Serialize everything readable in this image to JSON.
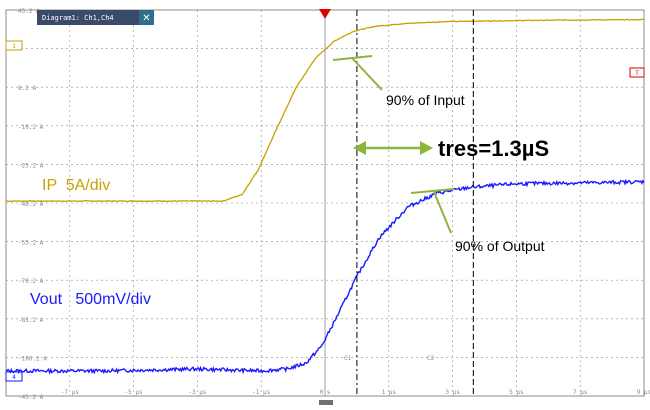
{
  "window": {
    "tab_title": "Diagram1: Ch1,Ch4",
    "close_glyph": "✕"
  },
  "colors": {
    "background": "#ffffff",
    "grid": "#8c8c8c",
    "input_trace": "#c8a000",
    "output_trace": "#1a1aff",
    "annotation": "#8db43c",
    "tab": "#3a4a6b",
    "trigger": "#e00000"
  },
  "icons": {
    "trigger": "trigger-marker-icon",
    "close": "close-icon",
    "channel1": "channel-1-marker-icon",
    "channel4": "channel-4-marker-icon",
    "trigger_level": "trigger-level-marker-icon"
  },
  "channels": {
    "input_label": "IP  5A/div",
    "output_label": "Vout   500mV/div"
  },
  "cursors": {
    "c1": "C1",
    "c2": "C2"
  },
  "annotations": {
    "input_90": "90% of Input",
    "output_90": "90% of Output",
    "response_time": "tres=1.3µS"
  },
  "axes": {
    "y_ticks": [
      "45.2 A",
      "",
      "8.2 A",
      "-10.2 A",
      "-25.2 A",
      "-40.2 A",
      "-55.2 A",
      "-70.2 A",
      "-85.2 A",
      "-100.2 A",
      "-45.2 A"
    ],
    "x_ticks": [
      "",
      "-7 µs",
      "-5 µs",
      "-3 µs",
      "-1 µs",
      "0 s",
      "1 µs",
      "3 µs",
      "5 µs",
      "7 µs",
      "9 µs"
    ]
  },
  "chart_data": {
    "type": "line",
    "title": "",
    "xlabel": "",
    "ylabel": "",
    "xlim": [
      -10,
      10
    ],
    "ylim": [
      -5,
      5
    ],
    "x_unit": "div",
    "y_unit": "div",
    "grid": true,
    "series": [
      {
        "name": "IP  5A/div",
        "x": [
          -10,
          -3.2,
          -2.6,
          -2.1,
          -1.5,
          -0.9,
          -0.3,
          0.3,
          0.9,
          1.6,
          2.5,
          3.8,
          5.5,
          7.5,
          10
        ],
        "y": [
          0.05,
          0.05,
          0.22,
          0.85,
          1.95,
          3.0,
          3.75,
          4.2,
          4.45,
          4.58,
          4.65,
          4.7,
          4.72,
          4.74,
          4.75
        ]
      },
      {
        "name": "Vout   500mV/div",
        "x": [
          -10,
          -7,
          -4,
          -2,
          -1.2,
          -0.6,
          -0.1,
          0.4,
          1.0,
          1.7,
          2.6,
          3.5,
          4.5,
          6,
          8,
          10
        ],
        "y": [
          -4.35,
          -4.35,
          -4.3,
          -4.35,
          -4.3,
          -4.15,
          -3.7,
          -2.9,
          -1.9,
          -0.9,
          -0.1,
          0.25,
          0.4,
          0.5,
          0.52,
          0.55
        ]
      }
    ],
    "cursors_x": [
      1.0,
      4.65
    ],
    "response_time": "tres=1.3µS"
  }
}
